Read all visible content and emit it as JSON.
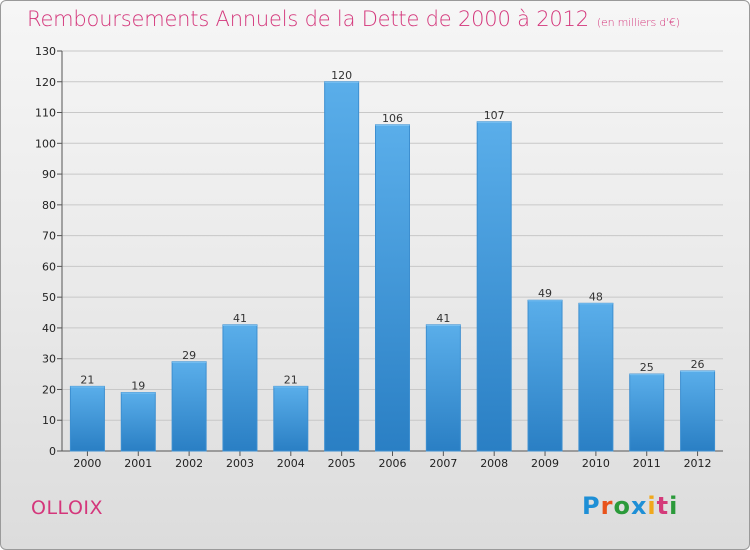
{
  "title": "Remboursements Annuels de la Dette de 2000 à 2012",
  "unit": "(en milliers d'€)",
  "commune": "OLLOIX",
  "logo": {
    "letters": [
      {
        "ch": "P",
        "color": "#1e8fd6"
      },
      {
        "ch": "r",
        "color": "#e8531b"
      },
      {
        "ch": "o",
        "color": "#2b9a3a"
      },
      {
        "ch": "x",
        "color": "#1e8fd6"
      },
      {
        "ch": "i",
        "color": "#f0a81c"
      },
      {
        "ch": "t",
        "color": "#d43a7a"
      },
      {
        "ch": "i",
        "color": "#2b9a3a"
      }
    ]
  },
  "chart_data": {
    "type": "bar",
    "categories": [
      "2000",
      "2001",
      "2002",
      "2003",
      "2004",
      "2005",
      "2006",
      "2007",
      "2008",
      "2009",
      "2010",
      "2011",
      "2012"
    ],
    "values": [
      21,
      19,
      29,
      41,
      21,
      120,
      106,
      41,
      107,
      49,
      48,
      25,
      26
    ],
    "ylim": [
      0,
      130
    ],
    "yticks": [
      0,
      10,
      20,
      30,
      40,
      50,
      60,
      70,
      80,
      90,
      100,
      110,
      120,
      130
    ],
    "grid": true,
    "colors": {
      "bar_top": "#5aaeea",
      "bar_bottom": "#2a7fc4",
      "grid": "#c8c8c8"
    }
  }
}
